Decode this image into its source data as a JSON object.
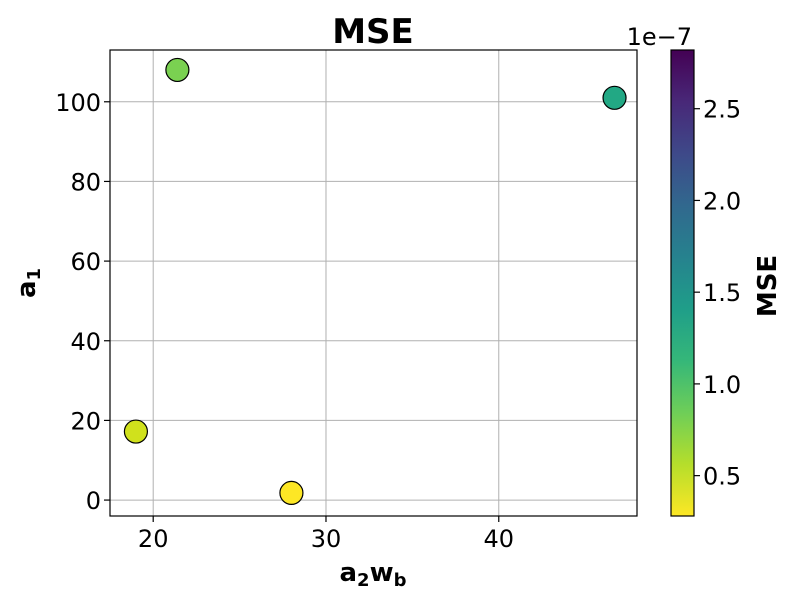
{
  "chart_data": {
    "type": "scatter",
    "title": "MSE",
    "xlabel": {
      "base": "a",
      "base_sub": "2",
      "rest": "w",
      "rest_sub": "b"
    },
    "ylabel": {
      "base": "a",
      "sub": "1"
    },
    "xlim": [
      17.5,
      48
    ],
    "ylim": [
      -4,
      113
    ],
    "xticks": [
      20,
      30,
      40
    ],
    "yticks": [
      0,
      20,
      40,
      60,
      80,
      100
    ],
    "grid": true,
    "points": [
      {
        "x": 21.4,
        "y": 108,
        "mse": 8e-08,
        "color": "#7ad151"
      },
      {
        "x": 46.7,
        "y": 101,
        "mse": 1.25e-07,
        "color": "#22a884"
      },
      {
        "x": 19.0,
        "y": 17.2,
        "mse": 4.5e-08,
        "color": "#d0e11c"
      },
      {
        "x": 28.0,
        "y": 1.8,
        "mse": 3e-08,
        "color": "#fde725"
      }
    ],
    "colorbar": {
      "label": "MSE",
      "multiplier": "1e−7",
      "range": [
        0.28,
        2.82
      ],
      "ticks": [
        0.5,
        1.0,
        1.5,
        2.0,
        2.5
      ],
      "tick_labels": [
        "0.5",
        "1.0",
        "1.5",
        "2.0",
        "2.5"
      ],
      "colormap": "viridis_r",
      "stops": [
        "#fde725",
        "#b5de2b",
        "#6ece58",
        "#35b779",
        "#1f9e89",
        "#26828e",
        "#31688e",
        "#3e4989",
        "#482878",
        "#440154"
      ]
    }
  }
}
